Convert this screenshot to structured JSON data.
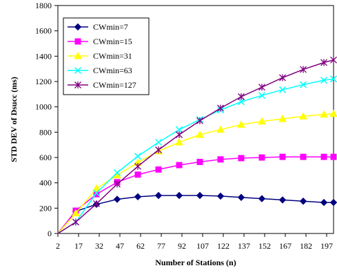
{
  "chart_data": {
    "type": "line",
    "title": "",
    "xlabel": "Number of Stations (n)",
    "ylabel": "STD DEV of Dsucc (ms)",
    "x_tick_labels": [
      "2",
      "17",
      "32",
      "47",
      "62",
      "77",
      "92",
      "107",
      "122",
      "137",
      "152",
      "167",
      "182",
      "197"
    ],
    "y_tick_labels": [
      "0",
      "200",
      "400",
      "600",
      "800",
      "1000",
      "1200",
      "1400",
      "1600",
      "1800"
    ],
    "xlim": [
      2,
      202
    ],
    "ylim": [
      0,
      1800
    ],
    "grid": false,
    "legend_position": "top-left",
    "x": [
      2,
      15,
      30,
      45,
      60,
      75,
      90,
      105,
      120,
      135,
      150,
      165,
      180,
      195,
      202
    ],
    "series": [
      {
        "name": "CWmin=7",
        "color": "#000080",
        "marker": "diamond",
        "values": [
          0,
          175,
          230,
          270,
          290,
          300,
          300,
          300,
          295,
          285,
          275,
          265,
          255,
          245,
          245
        ]
      },
      {
        "name": "CWmin=15",
        "color": "#ff00ff",
        "marker": "square",
        "values": [
          0,
          180,
          310,
          405,
          465,
          505,
          540,
          565,
          585,
          595,
          600,
          605,
          605,
          605,
          605
        ]
      },
      {
        "name": "CWmin=31",
        "color": "#ffff00",
        "marker": "triangle",
        "values": [
          0,
          160,
          355,
          460,
          560,
          650,
          720,
          780,
          820,
          860,
          885,
          905,
          925,
          940,
          945
        ]
      },
      {
        "name": "CWmin=63",
        "color": "#00ffff",
        "marker": "x",
        "values": [
          0,
          90,
          320,
          480,
          610,
          720,
          820,
          900,
          975,
          1040,
          1090,
          1135,
          1175,
          1210,
          1220
        ]
      },
      {
        "name": "CWmin=127",
        "color": "#800080",
        "marker": "star",
        "values": [
          0,
          90,
          235,
          390,
          530,
          660,
          780,
          890,
          990,
          1080,
          1155,
          1230,
          1295,
          1350,
          1370
        ]
      }
    ]
  }
}
